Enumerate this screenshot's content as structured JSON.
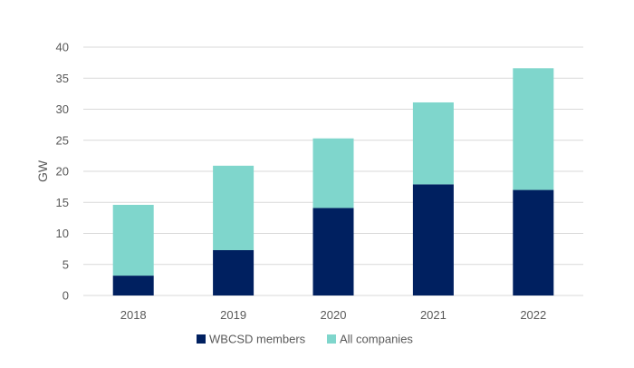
{
  "chart_data": {
    "type": "bar",
    "stacked": true,
    "categories": [
      "2018",
      "2019",
      "2020",
      "2021",
      "2022"
    ],
    "series": [
      {
        "name": "WBCSD members",
        "color": "#002060",
        "values": [
          3.2,
          7.3,
          14.1,
          17.9,
          17.0
        ]
      },
      {
        "name": "All companies",
        "color": "#7fd6cc",
        "values": [
          11.4,
          13.6,
          11.2,
          13.2,
          19.6
        ]
      }
    ],
    "title": "",
    "xlabel": "",
    "ylabel": "GW",
    "ylim": [
      0,
      40
    ],
    "yticks": [
      "0",
      "5",
      "10",
      "15",
      "20",
      "25",
      "30",
      "35",
      "40"
    ],
    "grid": true,
    "legend_position": "bottom"
  }
}
